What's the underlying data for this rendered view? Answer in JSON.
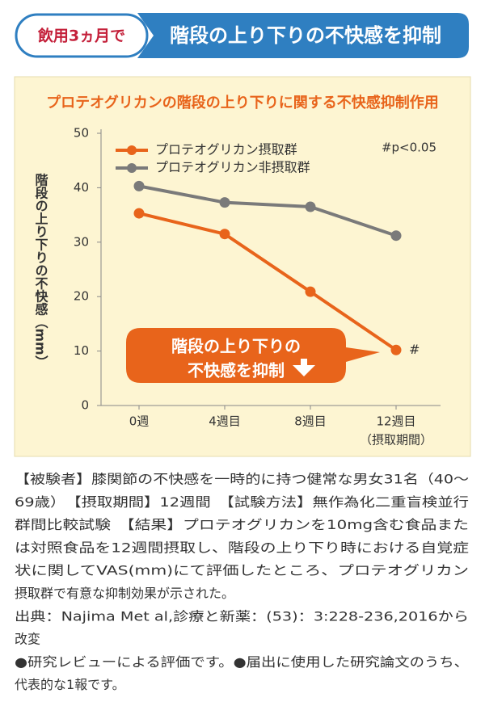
{
  "header": {
    "badge": "飲用3ヵ月で",
    "title": "階段の上り下りの不快感を抑制"
  },
  "chart_data": {
    "type": "line",
    "title": "プロテオグリカンの階段の上り下りに関する不快感抑制作用",
    "ylabel": "階段の上り下りの不快感（mm）",
    "xlabel": "（摂取期間）",
    "categories": [
      "0週",
      "4週目",
      "8週目",
      "12週目"
    ],
    "series": [
      {
        "name": "プロテオグリカン摂取群",
        "color": "#e8641b",
        "values": [
          35.3,
          31.5,
          20.9,
          10.2
        ]
      },
      {
        "name": "プロテオグリカン非摂取群",
        "color": "#7a7a7a",
        "values": [
          40.3,
          37.3,
          36.5,
          31.2
        ]
      }
    ],
    "ylim": [
      0,
      50
    ],
    "yticks": [
      0,
      10,
      20,
      30,
      40,
      50
    ],
    "significance_note": "#p<0.05",
    "point_mark": "#",
    "callout": [
      "階段の上り下りの",
      "不快感を抑制"
    ]
  },
  "body": {
    "lines": [
      "【被験者】膝関節の不快感を一時的に持つ健常な男女31名（40〜",
      "69歳）　【摂取期間】12週間　【試験方法】無作為化二重盲検並行",
      "群間比較試験　【結果】プロテオグリカンを10mg含む食品また",
      "は対照食品を12週間摂取し、階段の上り下り時における自覚症",
      "状に関してVAS(mm)にて評価したところ、プロテオグリカン",
      "摂取群で有意な抑制効果が示された。",
      "出典：Najima Met al,診療と新薬：(53)：3:228-236,2016から",
      "改変",
      "●研究レビューによる評価です。●届出に使用した研究論文のうち、",
      "代表的な1報です。"
    ]
  }
}
